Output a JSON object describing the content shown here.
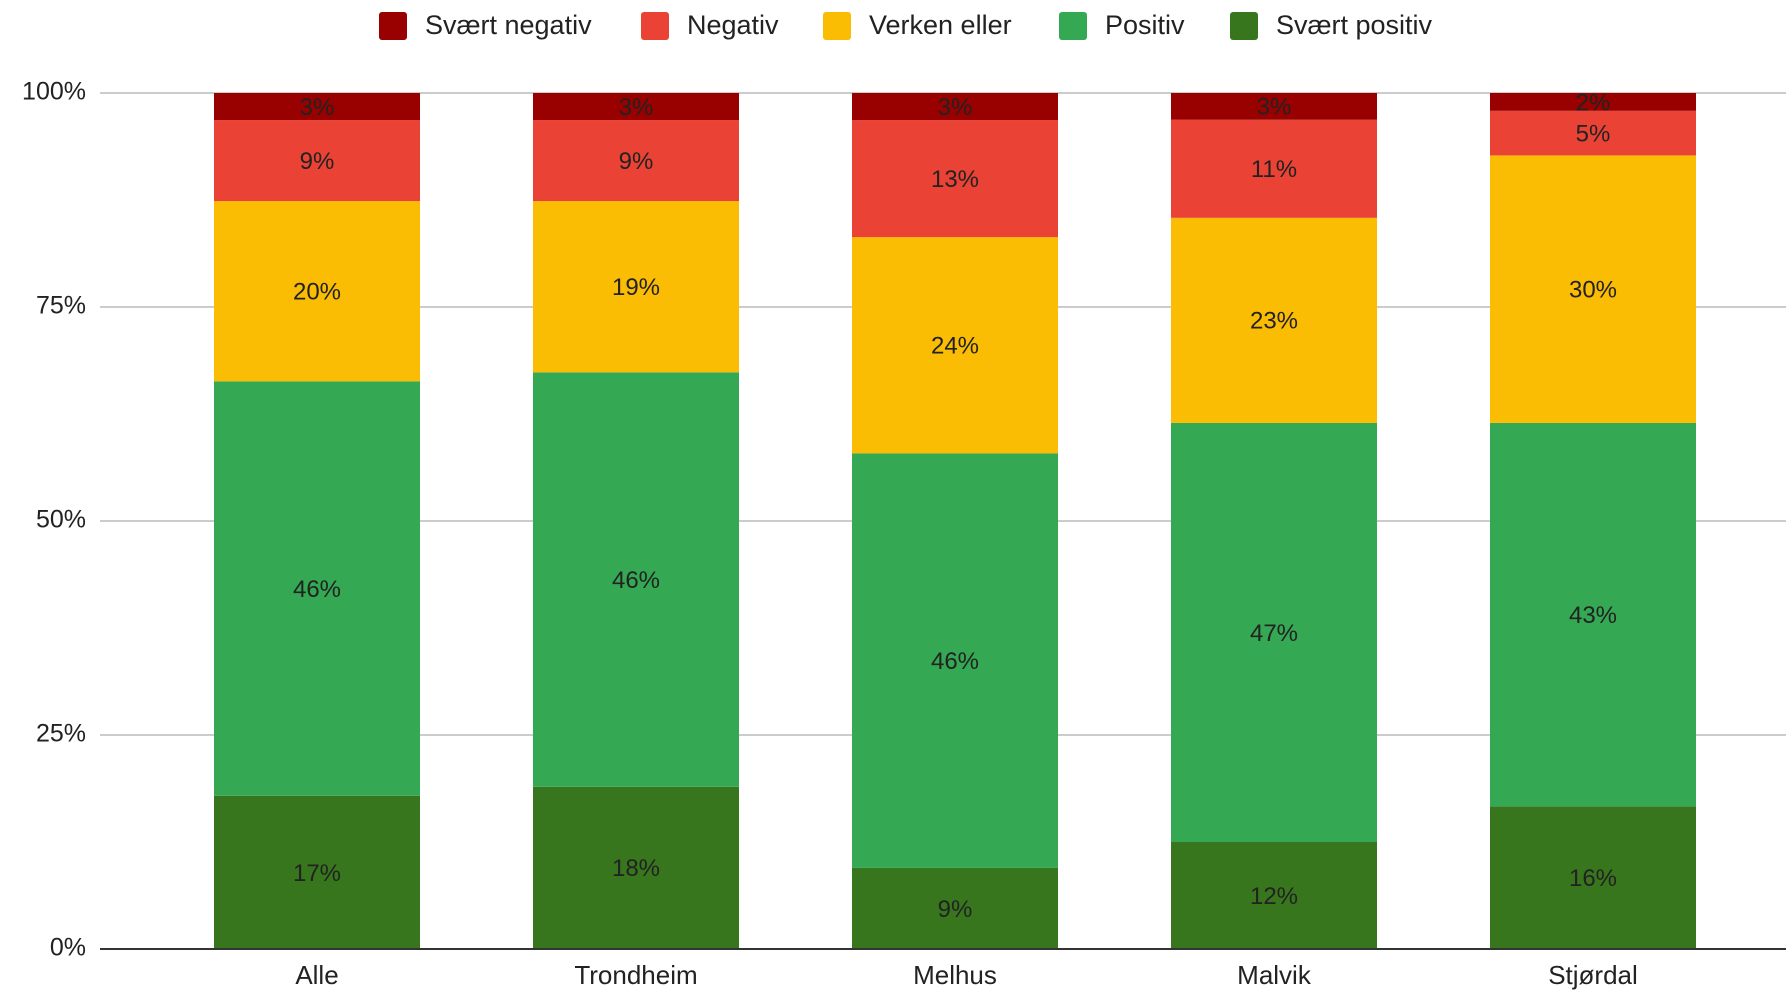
{
  "chart_data": {
    "type": "stacked_bar",
    "stacking": "percent",
    "categories": [
      "Alle",
      "Trondheim",
      "Melhus",
      "Malvik",
      "Stjørdal"
    ],
    "series": [
      {
        "name": "Svært negativ",
        "color": "#990000",
        "values": [
          3,
          3,
          3,
          3,
          2
        ],
        "value_labels": [
          "3%",
          "3%",
          "3%",
          "3%",
          "2%"
        ]
      },
      {
        "name": "Negativ",
        "color": "#ea4335",
        "values": [
          9,
          9,
          13,
          11,
          5
        ],
        "value_labels": [
          "9%",
          "9%",
          "13%",
          "11%",
          "5%"
        ]
      },
      {
        "name": "Verken eller",
        "color": "#fbbc04",
        "values": [
          20,
          19,
          24,
          23,
          30
        ],
        "value_labels": [
          "20%",
          "19%",
          "24%",
          "23%",
          "30%"
        ]
      },
      {
        "name": "Positiv",
        "color": "#34a853",
        "values": [
          46,
          46,
          46,
          47,
          43
        ],
        "value_labels": [
          "46%",
          "46%",
          "46%",
          "47%",
          "43%"
        ]
      },
      {
        "name": "Svært positiv",
        "color": "#38761d",
        "values": [
          17,
          18,
          9,
          12,
          16
        ],
        "value_labels": [
          "17%",
          "18%",
          "9%",
          "12%",
          "16%"
        ]
      }
    ],
    "ylim": [
      0,
      100
    ],
    "yticks": [
      {
        "value": 0,
        "label": "0%"
      },
      {
        "value": 25,
        "label": "25%"
      },
      {
        "value": 50,
        "label": "50%"
      },
      {
        "value": 75,
        "label": "75%"
      },
      {
        "value": 100,
        "label": "100%"
      }
    ],
    "grid": true,
    "legend": "top"
  }
}
